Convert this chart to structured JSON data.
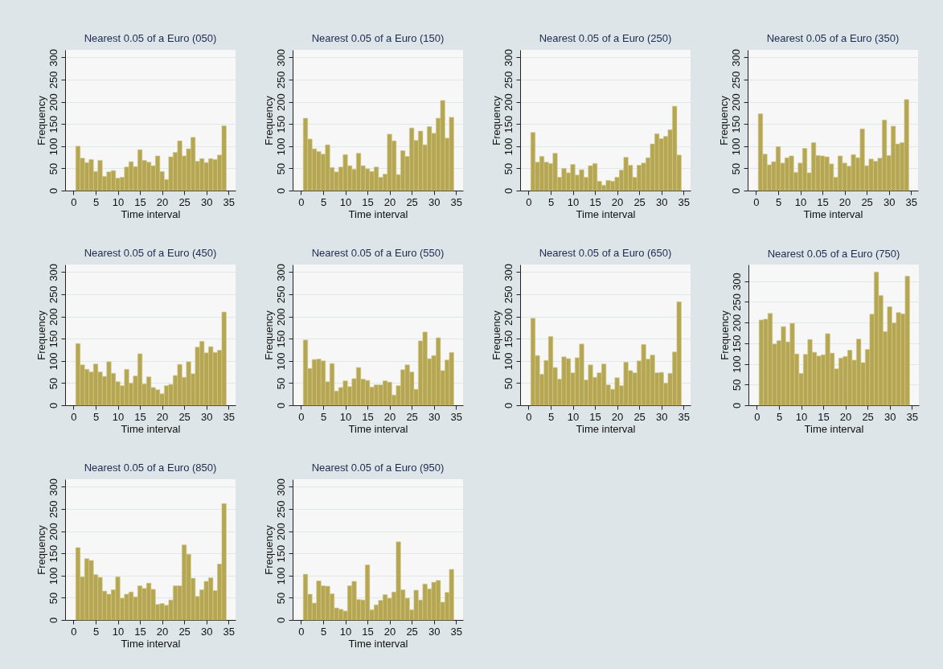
{
  "chart_data": [
    {
      "type": "histogram",
      "title": "Nearest 0.05 of a Euro (050)",
      "xlabel": "Time interval",
      "ylabel": "Frequency",
      "color": "#b5a654",
      "grid": "y",
      "xlim": [
        -1.9,
        36.6
      ],
      "ylim": [
        0,
        317
      ],
      "xticks": [
        0,
        5,
        10,
        15,
        20,
        25,
        30,
        35
      ],
      "yticks": [
        0,
        50,
        100,
        150,
        200,
        250,
        300
      ],
      "bins": [
        0.5,
        1.5,
        2.5,
        3.5,
        4.5,
        5.5,
        6.5,
        7.5,
        8.5,
        9.5,
        10.5,
        11.5,
        12.5,
        13.5,
        14.5,
        15.5,
        16.5,
        17.5,
        18.5,
        19.5,
        20.5,
        21.5,
        22.5,
        23.5,
        24.5,
        25.5,
        26.5,
        27.5,
        28.5,
        29.5,
        30.5,
        31.5,
        32.5,
        33.5,
        34.5
      ],
      "values": [
        100,
        73,
        63,
        70,
        43,
        68,
        32,
        42,
        45,
        28,
        30,
        53,
        65,
        54,
        92,
        68,
        64,
        56,
        78,
        43,
        25,
        76,
        86,
        112,
        78,
        94,
        120,
        66,
        72,
        63,
        72,
        70,
        80,
        146
      ]
    },
    {
      "type": "histogram",
      "title": "Nearest 0.05 of a Euro (150)",
      "xlabel": "Time interval",
      "ylabel": "Frequency",
      "color": "#b5a654",
      "grid": "y",
      "xlim": [
        -1.9,
        36.6
      ],
      "ylim": [
        0,
        317
      ],
      "xticks": [
        0,
        5,
        10,
        15,
        20,
        25,
        30,
        35
      ],
      "yticks": [
        0,
        50,
        100,
        150,
        200,
        250,
        300
      ],
      "bins": [
        0.5,
        1.5,
        2.5,
        3.5,
        4.5,
        5.5,
        6.5,
        7.5,
        8.5,
        9.5,
        10.5,
        11.5,
        12.5,
        13.5,
        14.5,
        15.5,
        16.5,
        17.5,
        18.5,
        19.5,
        20.5,
        21.5,
        22.5,
        23.5,
        24.5,
        25.5,
        26.5,
        27.5,
        28.5,
        29.5,
        30.5,
        31.5,
        32.5,
        33.5,
        34.5
      ],
      "values": [
        163,
        116,
        94,
        88,
        82,
        103,
        52,
        42,
        53,
        81,
        56,
        48,
        84,
        56,
        49,
        43,
        53,
        30,
        37,
        127,
        112,
        36,
        90,
        77,
        141,
        113,
        134,
        103,
        144,
        129,
        163,
        203,
        118,
        165
      ]
    },
    {
      "type": "histogram",
      "title": "Nearest 0.05 of a Euro (250)",
      "xlabel": "Time interval",
      "ylabel": "Frequency",
      "color": "#b5a654",
      "grid": "y",
      "xlim": [
        -1.9,
        36.6
      ],
      "ylim": [
        0,
        317
      ],
      "xticks": [
        0,
        5,
        10,
        15,
        20,
        25,
        30,
        35
      ],
      "yticks": [
        0,
        50,
        100,
        150,
        200,
        250,
        300
      ],
      "bins": [
        0.5,
        1.5,
        2.5,
        3.5,
        4.5,
        5.5,
        6.5,
        7.5,
        8.5,
        9.5,
        10.5,
        11.5,
        12.5,
        13.5,
        14.5,
        15.5,
        16.5,
        17.5,
        18.5,
        19.5,
        20.5,
        21.5,
        22.5,
        23.5,
        24.5,
        25.5,
        26.5,
        27.5,
        28.5,
        29.5,
        30.5,
        31.5,
        32.5,
        33.5,
        34.5
      ],
      "values": [
        131,
        64,
        77,
        64,
        61,
        84,
        30,
        50,
        40,
        59,
        35,
        47,
        30,
        56,
        61,
        21,
        12,
        23,
        21,
        30,
        46,
        75,
        57,
        30,
        57,
        62,
        74,
        105,
        128,
        117,
        122,
        137,
        190,
        80
      ]
    },
    {
      "type": "histogram",
      "title": "Nearest 0.05 of a Euro (350)",
      "xlabel": "Time interval",
      "ylabel": "Frequency",
      "color": "#b5a654",
      "grid": "y",
      "xlim": [
        -1.9,
        36.6
      ],
      "ylim": [
        0,
        317
      ],
      "xticks": [
        0,
        5,
        10,
        15,
        20,
        25,
        30,
        35
      ],
      "yticks": [
        0,
        50,
        100,
        150,
        200,
        250,
        300
      ],
      "bins": [
        0.5,
        1.5,
        2.5,
        3.5,
        4.5,
        5.5,
        6.5,
        7.5,
        8.5,
        9.5,
        10.5,
        11.5,
        12.5,
        13.5,
        14.5,
        15.5,
        16.5,
        17.5,
        18.5,
        19.5,
        20.5,
        21.5,
        22.5,
        23.5,
        24.5,
        25.5,
        26.5,
        27.5,
        28.5,
        29.5,
        30.5,
        31.5,
        32.5,
        33.5,
        34.5
      ],
      "values": [
        173,
        82,
        58,
        65,
        99,
        62,
        74,
        78,
        41,
        62,
        95,
        40,
        108,
        79,
        78,
        76,
        60,
        30,
        78,
        62,
        55,
        81,
        74,
        139,
        56,
        71,
        66,
        73,
        159,
        79,
        145,
        105,
        108,
        205
      ]
    },
    {
      "type": "histogram",
      "title": "Nearest 0.05 of a Euro (450)",
      "xlabel": "Time interval",
      "ylabel": "Frequency",
      "color": "#b5a654",
      "grid": "y",
      "xlim": [
        -1.9,
        36.6
      ],
      "ylim": [
        0,
        317
      ],
      "xticks": [
        0,
        5,
        10,
        15,
        20,
        25,
        30,
        35
      ],
      "yticks": [
        0,
        50,
        100,
        150,
        200,
        250,
        300
      ],
      "bins": [
        0.5,
        1.5,
        2.5,
        3.5,
        4.5,
        5.5,
        6.5,
        7.5,
        8.5,
        9.5,
        10.5,
        11.5,
        12.5,
        13.5,
        14.5,
        15.5,
        16.5,
        17.5,
        18.5,
        19.5,
        20.5,
        21.5,
        22.5,
        23.5,
        24.5,
        25.5,
        26.5,
        27.5,
        28.5,
        29.5,
        30.5,
        31.5,
        32.5,
        33.5,
        34.5
      ],
      "values": [
        139,
        91,
        81,
        75,
        93,
        75,
        65,
        98,
        72,
        53,
        44,
        81,
        50,
        66,
        116,
        48,
        64,
        40,
        35,
        26,
        44,
        47,
        67,
        92,
        63,
        98,
        71,
        131,
        144,
        118,
        132,
        119,
        124,
        210
      ]
    },
    {
      "type": "histogram",
      "title": "Nearest 0.05 of a Euro (550)",
      "xlabel": "Time interval",
      "ylabel": "Frequency",
      "color": "#b5a654",
      "grid": "y",
      "xlim": [
        -1.9,
        36.6
      ],
      "ylim": [
        0,
        317
      ],
      "xticks": [
        0,
        5,
        10,
        15,
        20,
        25,
        30,
        35
      ],
      "yticks": [
        0,
        50,
        100,
        150,
        200,
        250,
        300
      ],
      "bins": [
        0.5,
        1.5,
        2.5,
        3.5,
        4.5,
        5.5,
        6.5,
        7.5,
        8.5,
        9.5,
        10.5,
        11.5,
        12.5,
        13.5,
        14.5,
        15.5,
        16.5,
        17.5,
        18.5,
        19.5,
        20.5,
        21.5,
        22.5,
        23.5,
        24.5,
        25.5,
        26.5,
        27.5,
        28.5,
        29.5,
        30.5,
        31.5,
        32.5,
        33.5,
        34.5
      ],
      "values": [
        147,
        83,
        103,
        104,
        100,
        53,
        94,
        32,
        40,
        55,
        42,
        60,
        85,
        59,
        56,
        41,
        46,
        46,
        55,
        52,
        23,
        44,
        80,
        91,
        75,
        36,
        145,
        165,
        105,
        112,
        152,
        78,
        102,
        119
      ]
    },
    {
      "type": "histogram",
      "title": "Nearest 0.05 of a Euro (650)",
      "xlabel": "Time interval",
      "ylabel": "Frequency",
      "color": "#b5a654",
      "grid": "y",
      "xlim": [
        -1.9,
        36.6
      ],
      "ylim": [
        0,
        317
      ],
      "xticks": [
        0,
        5,
        10,
        15,
        20,
        25,
        30,
        35
      ],
      "yticks": [
        0,
        50,
        100,
        150,
        200,
        250,
        300
      ],
      "bins": [
        0.5,
        1.5,
        2.5,
        3.5,
        4.5,
        5.5,
        6.5,
        7.5,
        8.5,
        9.5,
        10.5,
        11.5,
        12.5,
        13.5,
        14.5,
        15.5,
        16.5,
        17.5,
        18.5,
        19.5,
        20.5,
        21.5,
        22.5,
        23.5,
        24.5,
        25.5,
        26.5,
        27.5,
        28.5,
        29.5,
        30.5,
        31.5,
        32.5,
        33.5,
        34.5
      ],
      "values": [
        196,
        112,
        70,
        101,
        155,
        85,
        59,
        109,
        105,
        73,
        107,
        138,
        57,
        91,
        63,
        73,
        93,
        46,
        36,
        62,
        44,
        97,
        78,
        73,
        100,
        137,
        104,
        113,
        73,
        74,
        50,
        72,
        120,
        233
      ]
    },
    {
      "type": "histogram",
      "title": "Nearest 0.05 of a Euro (750)",
      "xlabel": "Time interval",
      "ylabel": "Frequency",
      "color": "#b5a654",
      "grid": "y",
      "xlim": [
        -1.9,
        36.6
      ],
      "ylim": [
        0,
        340
      ],
      "xticks": [
        0,
        5,
        10,
        15,
        20,
        25,
        30,
        35
      ],
      "yticks": [
        0,
        50,
        100,
        150,
        200,
        250,
        300
      ],
      "bins": [
        0.5,
        1.5,
        2.5,
        3.5,
        4.5,
        5.5,
        6.5,
        7.5,
        8.5,
        9.5,
        10.5,
        11.5,
        12.5,
        13.5,
        14.5,
        15.5,
        16.5,
        17.5,
        18.5,
        19.5,
        20.5,
        21.5,
        22.5,
        23.5,
        24.5,
        25.5,
        26.5,
        27.5,
        28.5,
        29.5,
        30.5,
        31.5,
        32.5,
        33.5,
        34.5
      ],
      "values": [
        206,
        208,
        222,
        148,
        156,
        190,
        153,
        198,
        124,
        77,
        123,
        159,
        128,
        119,
        122,
        173,
        126,
        88,
        114,
        118,
        133,
        109,
        160,
        103,
        135,
        220,
        322,
        265,
        178,
        238,
        199,
        224,
        221,
        312
      ]
    },
    {
      "type": "histogram",
      "title": "Nearest 0.05 of a Euro (850)",
      "xlabel": "Time interval",
      "ylabel": "Frequency",
      "color": "#b5a654",
      "grid": "y",
      "xlim": [
        -1.9,
        36.6
      ],
      "ylim": [
        0,
        317
      ],
      "xticks": [
        0,
        5,
        10,
        15,
        20,
        25,
        30,
        35
      ],
      "yticks": [
        0,
        50,
        100,
        150,
        200,
        250,
        300
      ],
      "bins": [
        0.5,
        1.5,
        2.5,
        3.5,
        4.5,
        5.5,
        6.5,
        7.5,
        8.5,
        9.5,
        10.5,
        11.5,
        12.5,
        13.5,
        14.5,
        15.5,
        16.5,
        17.5,
        18.5,
        19.5,
        20.5,
        21.5,
        22.5,
        23.5,
        24.5,
        25.5,
        26.5,
        27.5,
        28.5,
        29.5,
        30.5,
        31.5,
        32.5,
        33.5,
        34.5
      ],
      "values": [
        163,
        97,
        138,
        134,
        102,
        96,
        65,
        58,
        68,
        97,
        49,
        58,
        63,
        52,
        77,
        71,
        83,
        69,
        35,
        37,
        33,
        45,
        77,
        77,
        169,
        148,
        94,
        53,
        68,
        87,
        95,
        66,
        126,
        262
      ]
    },
    {
      "type": "histogram",
      "title": "Nearest 0.05 of a Euro (950)",
      "xlabel": "Time interval",
      "ylabel": "Frequency",
      "color": "#b5a654",
      "grid": "y",
      "xlim": [
        -1.9,
        36.6
      ],
      "ylim": [
        0,
        317
      ],
      "xticks": [
        0,
        5,
        10,
        15,
        20,
        25,
        30,
        35
      ],
      "yticks": [
        0,
        50,
        100,
        150,
        200,
        250,
        300
      ],
      "bins": [
        0.5,
        1.5,
        2.5,
        3.5,
        4.5,
        5.5,
        6.5,
        7.5,
        8.5,
        9.5,
        10.5,
        11.5,
        12.5,
        13.5,
        14.5,
        15.5,
        16.5,
        17.5,
        18.5,
        19.5,
        20.5,
        21.5,
        22.5,
        23.5,
        24.5,
        25.5,
        26.5,
        27.5,
        28.5,
        29.5,
        30.5,
        31.5,
        32.5,
        33.5,
        34.5
      ],
      "values": [
        103,
        58,
        38,
        88,
        77,
        76,
        59,
        27,
        24,
        20,
        77,
        87,
        46,
        45,
        124,
        23,
        34,
        44,
        57,
        49,
        63,
        176,
        68,
        49,
        23,
        67,
        45,
        81,
        70,
        85,
        89,
        40,
        62,
        114
      ]
    }
  ]
}
